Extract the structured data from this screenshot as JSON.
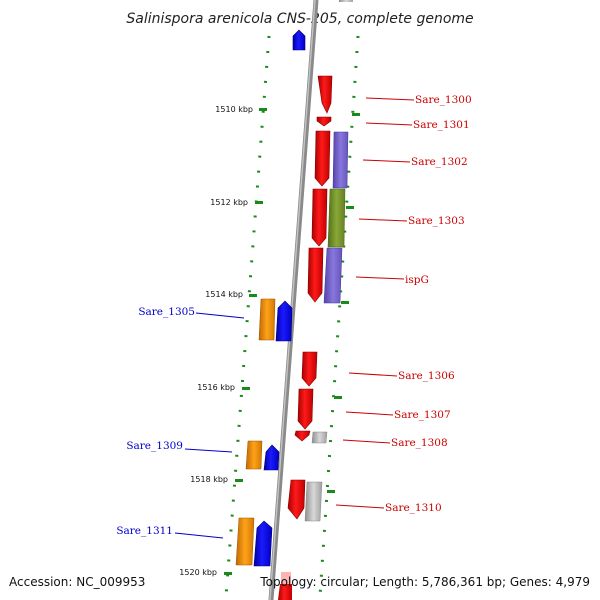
{
  "title": "Salinispora arenicola CNS-205, complete genome",
  "accession": "Accession: NC_009953",
  "genome_stats": "Topology: circular; Length: 5,786,361 bp; Genes: 4,979",
  "colors": {
    "forward_gene": "#ff0000",
    "reverse_gene": "#0000ff",
    "orange_feature": "#ff9900",
    "purple_feature": "#7766cc",
    "green_feature": "#77992b",
    "gray_feature": "#b5b5b5",
    "backbone": "#8a8a8a",
    "tick": "#1a8a1a",
    "label_forward": "#cc0000",
    "label_reverse": "#0000cc"
  },
  "scale_labels": [
    "1510 kbp",
    "1512 kbp",
    "1514 kbp",
    "1516 kbp",
    "1518 kbp",
    "1520 kbp"
  ],
  "gene_labels_right": [
    "Sare_1300",
    "Sare_1301",
    "Sare_1302",
    "Sare_1303",
    "ispG",
    "Sare_1306",
    "Sare_1307",
    "Sare_1308",
    "Sare_1310"
  ],
  "gene_labels_left": [
    "Sare_1305",
    "Sare_1309",
    "Sare_1311"
  ]
}
